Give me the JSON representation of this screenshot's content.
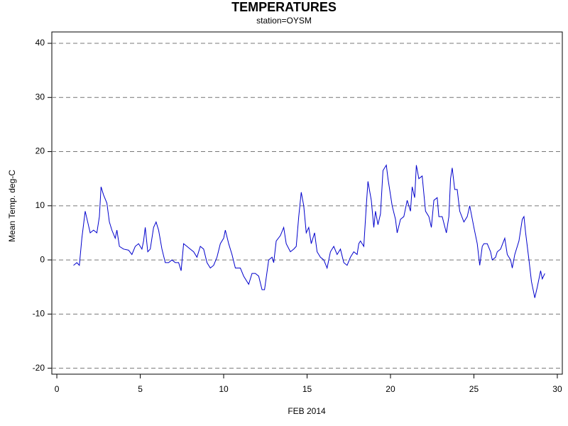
{
  "chart_data": {
    "type": "line",
    "title": "TEMPERATURES",
    "subtitle": "station=OYSM",
    "x_label": "FEB 2014",
    "y_label": "Mean Temp. deg-C",
    "x": [
      1.0,
      1.2,
      1.35,
      1.5,
      1.7,
      1.85,
      2.0,
      2.2,
      2.4,
      2.55,
      2.65,
      2.8,
      3.0,
      3.15,
      3.3,
      3.5,
      3.6,
      3.75,
      4.0,
      4.3,
      4.5,
      4.7,
      4.9,
      5.1,
      5.2,
      5.3,
      5.45,
      5.6,
      5.8,
      5.95,
      6.1,
      6.3,
      6.5,
      6.7,
      6.9,
      7.1,
      7.3,
      7.45,
      7.6,
      7.8,
      8.0,
      8.2,
      8.4,
      8.6,
      8.8,
      9.0,
      9.2,
      9.4,
      9.6,
      9.8,
      10.0,
      10.1,
      10.3,
      10.5,
      10.7,
      11.0,
      11.2,
      11.5,
      11.7,
      11.9,
      12.1,
      12.3,
      12.45,
      12.7,
      12.9,
      13.0,
      13.15,
      13.4,
      13.6,
      13.75,
      14.0,
      14.2,
      14.35,
      14.5,
      14.65,
      14.8,
      14.95,
      15.1,
      15.25,
      15.45,
      15.6,
      15.8,
      16.0,
      16.2,
      16.4,
      16.6,
      16.8,
      17.0,
      17.2,
      17.4,
      17.6,
      17.8,
      18.0,
      18.1,
      18.2,
      18.4,
      18.55,
      18.65,
      18.85,
      19.0,
      19.1,
      19.25,
      19.4,
      19.55,
      19.75,
      19.85,
      20.1,
      20.3,
      20.4,
      20.6,
      20.8,
      21.0,
      21.2,
      21.3,
      21.45,
      21.55,
      21.7,
      21.9,
      22.1,
      22.3,
      22.45,
      22.6,
      22.8,
      22.9,
      23.1,
      23.35,
      23.5,
      23.6,
      23.7,
      23.85,
      24.0,
      24.15,
      24.4,
      24.6,
      24.75,
      25.0,
      25.2,
      25.35,
      25.5,
      25.6,
      25.8,
      26.0,
      26.1,
      26.3,
      26.4,
      26.6,
      26.85,
      27.0,
      27.2,
      27.3,
      27.45,
      27.7,
      27.9,
      28.0,
      28.1,
      28.3,
      28.45,
      28.65,
      28.8,
      29.0,
      29.1,
      29.25
    ],
    "series": [
      {
        "color": "#0000cc",
        "values": [
          -1,
          -0.5,
          -1,
          4,
          9,
          7,
          5,
          5.5,
          5,
          8,
          13.5,
          12,
          10.5,
          7,
          5.5,
          4,
          5.5,
          2.5,
          2,
          1.8,
          1,
          2.5,
          3,
          2,
          3.5,
          6,
          1.5,
          2,
          6,
          7,
          5.5,
          2,
          -0.5,
          -0.5,
          0,
          -0.5,
          -0.5,
          -2,
          3,
          2.5,
          2,
          1.5,
          0.5,
          2.5,
          2,
          -0.5,
          -1.5,
          -1,
          0.5,
          3,
          4,
          5.5,
          3,
          1,
          -1.5,
          -1.5,
          -3,
          -4.5,
          -2.5,
          -2.5,
          -3,
          -5.5,
          -5.5,
          0,
          0.5,
          -0.5,
          3.5,
          4.5,
          6,
          3,
          1.5,
          2,
          2.5,
          8,
          12.5,
          10,
          5,
          6,
          3,
          5,
          1.5,
          0.5,
          0,
          -1.5,
          1.5,
          2.5,
          1,
          2,
          -0.5,
          -1,
          0.5,
          1.5,
          1,
          3,
          3.5,
          2.5,
          10,
          14.5,
          11,
          6,
          9,
          6.5,
          8.5,
          16.5,
          17.5,
          15,
          10,
          7.5,
          5,
          7.5,
          8,
          11,
          9,
          13.5,
          11.5,
          17.5,
          15,
          15.5,
          9,
          8,
          6,
          11,
          11.5,
          8,
          8,
          5,
          8,
          15,
          17,
          13,
          13,
          9,
          7,
          8,
          10,
          6,
          3,
          -1,
          2.5,
          3,
          3,
          1.5,
          0,
          0.5,
          1.5,
          2,
          4,
          1,
          0,
          -1.5,
          1,
          3.5,
          7.5,
          8,
          5,
          0,
          -4,
          -7,
          -5,
          -2,
          -3.5,
          -2.5
        ]
      }
    ],
    "xlim": [
      -0.3,
      30.3
    ],
    "xticks": [
      0,
      5,
      10,
      15,
      20,
      25,
      30
    ],
    "ylim": [
      -21.1,
      42.1
    ],
    "yticks": [
      -20,
      -10,
      0,
      10,
      20,
      30,
      40
    ],
    "grid": true
  }
}
